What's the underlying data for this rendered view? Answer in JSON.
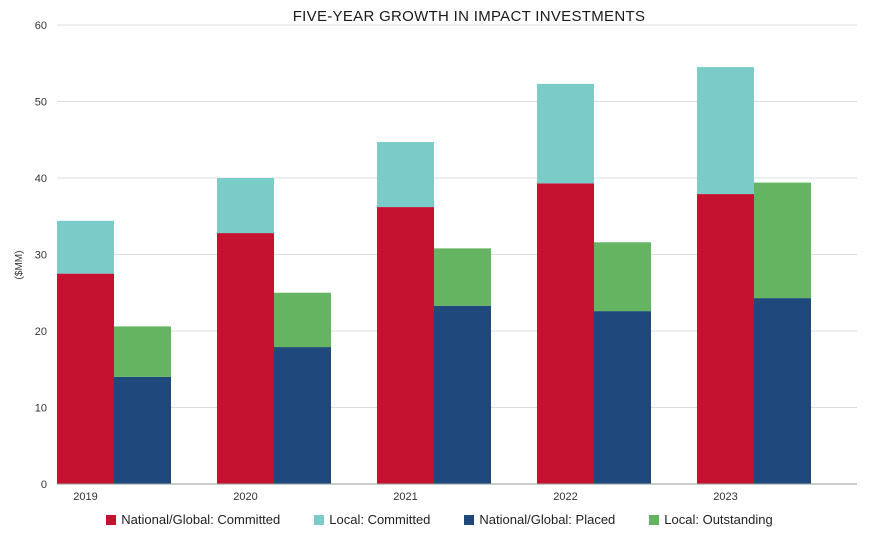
{
  "chart_data": {
    "type": "bar",
    "title": "FIVE-YEAR GROWTH IN IMPACT INVESTMENTS",
    "ylabel": "($MM)",
    "xlabel": "",
    "ylim": [
      0,
      60
    ],
    "yticks": [
      "0",
      "10",
      "20",
      "30",
      "40",
      "50",
      "60"
    ],
    "grid": true,
    "legend_position": "bottom",
    "categories": [
      "2019",
      "2020",
      "2021",
      "2022",
      "2023"
    ],
    "stacks": [
      {
        "stack": "national_local_committed",
        "series": [
          {
            "name": "National/Global: Committed",
            "color": "#c41230",
            "values": [
              27.5,
              32.8,
              36.2,
              39.3,
              37.9
            ]
          },
          {
            "name": "Local: Committed",
            "color": "#7accc8",
            "values": [
              6.9,
              7.2,
              8.5,
              13.0,
              16.6
            ]
          }
        ]
      },
      {
        "stack": "placed_outstanding",
        "series": [
          {
            "name": "National/Global: Placed",
            "color": "#1f497d",
            "values": [
              14.0,
              17.9,
              23.3,
              22.6,
              24.3
            ]
          },
          {
            "name": "Local: Outstanding",
            "color": "#64b461",
            "values": [
              6.6,
              7.1,
              7.5,
              9.0,
              15.1
            ]
          }
        ]
      }
    ],
    "legend": [
      {
        "label": "National/Global: Committed",
        "color": "#c41230"
      },
      {
        "label": "Local: Committed",
        "color": "#7accc8"
      },
      {
        "label": "National/Global: Placed",
        "color": "#1f497d"
      },
      {
        "label": "Local: Outstanding",
        "color": "#64b461"
      }
    ]
  }
}
